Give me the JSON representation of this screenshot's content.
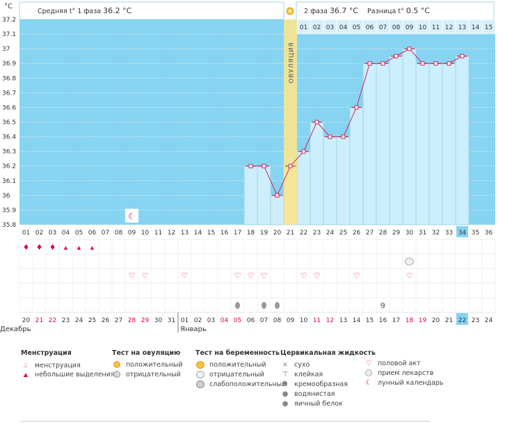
{
  "unit_label": "°C",
  "header": {
    "phase1": "Средняя t° 1 фаза",
    "phase1_value": "36.2 °C",
    "phase2": "2 фаза",
    "phase2_value": "36.7 °C",
    "diff": "Разница t°",
    "diff_value": "0.5 °C",
    "ovulation": "ОВУЛЯЦИЯ"
  },
  "month_labels": {
    "december": "Декабрь",
    "january": "Январь"
  },
  "chart_data": {
    "type": "line",
    "title": "",
    "ylabel": "°C",
    "ylim": [
      35.8,
      37.2
    ],
    "yticks": [
      35.8,
      35.9,
      36,
      36.1,
      36.2,
      36.3,
      36.4,
      36.5,
      36.6,
      36.7,
      36.8,
      36.9,
      37,
      37.1,
      37.2
    ],
    "ytick_labels": [
      "35.8",
      "35.9",
      "36",
      "36.1",
      "36.2",
      "36.3",
      "36.4",
      "36.5",
      "36.6",
      "36.7",
      "36.8",
      "36.9",
      "37",
      "37.1",
      "37.2"
    ],
    "cycle_days": [
      "01",
      "02",
      "03",
      "04",
      "05",
      "06",
      "07",
      "08",
      "09",
      "10",
      "11",
      "12",
      "13",
      "14",
      "15",
      "16",
      "17",
      "18",
      "19",
      "20",
      "21",
      "22",
      "23",
      "24",
      "25",
      "26",
      "27",
      "28",
      "29",
      "30",
      "31",
      "32",
      "33",
      "34",
      "35",
      "36"
    ],
    "current_cycle_day": "34",
    "phase2_days": [
      "01",
      "02",
      "03",
      "04",
      "05",
      "06",
      "07",
      "08",
      "09",
      "10",
      "11",
      "12",
      "13",
      "14",
      "15"
    ],
    "calendar_dates": [
      "20",
      "21",
      "22",
      "23",
      "24",
      "25",
      "26",
      "27",
      "28",
      "29",
      "30",
      "31",
      "01",
      "02",
      "03",
      "04",
      "05",
      "06",
      "07",
      "08",
      "09",
      "10",
      "11",
      "12",
      "13",
      "14",
      "15",
      "16",
      "17",
      "18",
      "19",
      "20",
      "21",
      "22",
      "23",
      "24"
    ],
    "calendar_date_colors": [
      "#333333",
      "#e0004d",
      "#e0004d",
      "#333333",
      "#333333",
      "#333333",
      "#333333",
      "#333333",
      "#e0004d",
      "#e0004d",
      "#333333",
      "#333333",
      "#333333",
      "#333333",
      "#333333",
      "#e0004d",
      "#e0004d",
      "#333333",
      "#333333",
      "#333333",
      "#333333",
      "#333333",
      "#e0004d",
      "#e0004d",
      "#333333",
      "#333333",
      "#333333",
      "#333333",
      "#333333",
      "#e0004d",
      "#e0004d",
      "#333333",
      "#333333",
      "#333333",
      "#333333",
      "#333333"
    ],
    "today_date": "22",
    "ovulation_day": 21,
    "series": [
      {
        "name": "Базальная температура",
        "days": [
          18,
          19,
          20,
          21,
          22,
          23,
          24,
          25,
          26,
          27,
          28,
          29,
          30,
          31,
          32,
          33,
          34
        ],
        "values": [
          36.2,
          36.2,
          36.0,
          36.2,
          36.3,
          36.5,
          36.4,
          36.4,
          36.6,
          36.9,
          36.9,
          36.95,
          37.0,
          36.9,
          36.9,
          36.9,
          36.95
        ]
      }
    ],
    "bar_days": [
      18,
      19,
      20,
      21,
      22,
      23,
      24,
      25,
      26,
      27,
      28,
      29,
      30,
      31,
      32,
      33,
      34
    ],
    "moon_day": 9,
    "menstruation": [
      {
        "day": 1,
        "type": "heavy"
      },
      {
        "day": 2,
        "type": "heavy"
      },
      {
        "day": 3,
        "type": "heavy"
      },
      {
        "day": 4,
        "type": "light"
      },
      {
        "day": 5,
        "type": "light"
      },
      {
        "day": 6,
        "type": "light"
      }
    ],
    "pregnancy_test_negative_days": [
      30
    ],
    "intercourse_days": [
      9,
      10,
      13,
      17,
      18,
      19,
      22,
      23,
      26,
      30
    ],
    "cervical_fluid": [
      {
        "day": 17,
        "type": "watery"
      },
      {
        "day": 19,
        "type": "watery"
      },
      {
        "day": 20,
        "type": "watery"
      },
      {
        "day": 28,
        "type": "creamy"
      }
    ]
  },
  "legend": {
    "menstruation": {
      "title": "Менструация",
      "items": [
        "менструация",
        "небольшие выделения"
      ]
    },
    "ovulation_test": {
      "title": "Тест на овуляцию",
      "items": [
        "положительный",
        "отрицательный"
      ]
    },
    "pregnancy_test": {
      "title": "Тест на беременность",
      "items": [
        "положительный",
        "отрицательный",
        "слабоположительный"
      ]
    },
    "cervical": {
      "title": "Цервикальная жидкость",
      "items": [
        "сухо",
        "клейкая",
        "кремообразная",
        "водянистая",
        "яичный белок"
      ]
    },
    "other": {
      "items": [
        "половой акт",
        "прием лекарств",
        "лунный календарь"
      ]
    }
  },
  "colors": {
    "plot_bg": "#87d3f2",
    "bar_fill": "#cdeefc",
    "bar_stroke": "#9fd4ee",
    "line": "#c8285a",
    "ovulation_band": "#fce58c",
    "today_cell": "#87d3f2",
    "accent": "#e0004d"
  }
}
